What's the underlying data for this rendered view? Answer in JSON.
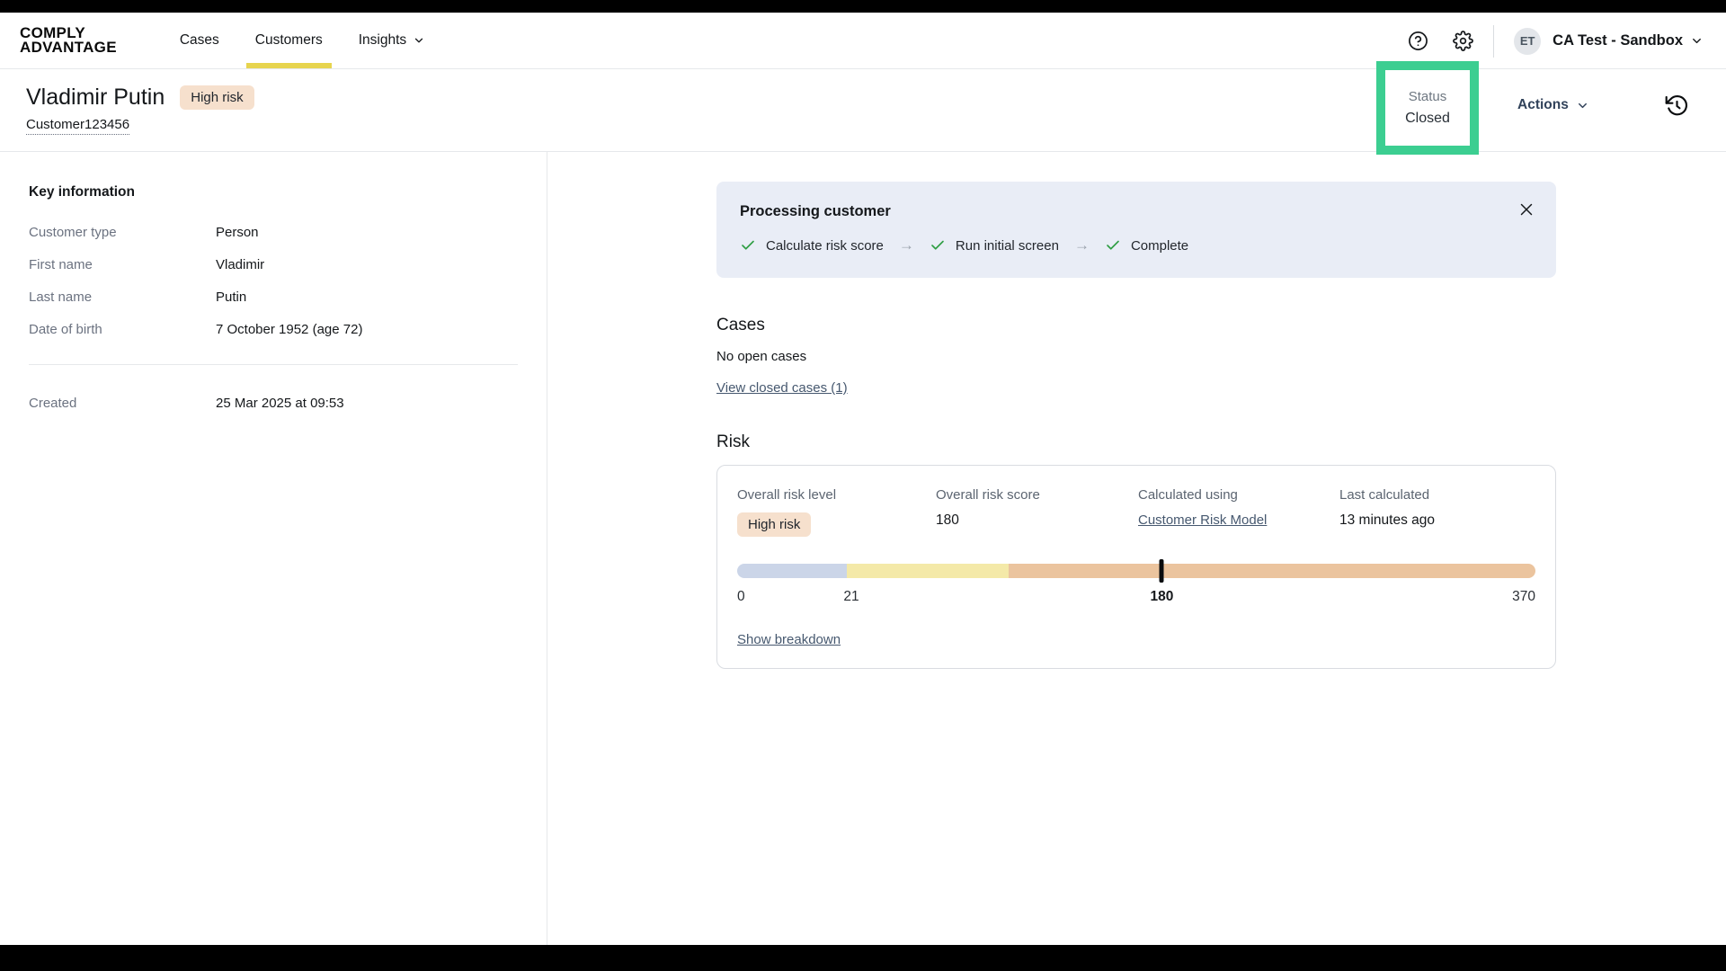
{
  "colors": {
    "annotation-green": "#3CCE91",
    "active-tab-yellow": "#E7D44E",
    "badge-peach": "#F6E0CD",
    "banner-blue": "#E9EDF6",
    "check-green": "#2F9E44",
    "link-slate": "#46586F"
  },
  "brand": {
    "line1": "COMPLY",
    "line2": "ADVANTAGE"
  },
  "nav": {
    "items": [
      {
        "label": "Cases"
      },
      {
        "label": "Customers"
      },
      {
        "label": "Insights"
      }
    ]
  },
  "topbar": {
    "avatar_initials": "ET",
    "workspace": "CA Test - Sandbox"
  },
  "header": {
    "customer_name": "Vladimir Putin",
    "risk_badge": "High risk",
    "customer_id": "Customer123456",
    "status_label": "Status",
    "status_value": "Closed",
    "actions_label": "Actions"
  },
  "key_information": {
    "title": "Key information",
    "fields": [
      {
        "label": "Customer type",
        "value": "Person"
      },
      {
        "label": "First name",
        "value": "Vladimir"
      },
      {
        "label": "Last name",
        "value": "Putin"
      },
      {
        "label": "Date of birth",
        "value": "7 October 1952 (age 72)"
      }
    ],
    "created": {
      "label": "Created",
      "value": "25 Mar 2025 at 09:53"
    }
  },
  "processing_banner": {
    "title": "Processing customer",
    "steps": [
      "Calculate risk score",
      "Run initial screen",
      "Complete"
    ]
  },
  "cases": {
    "title": "Cases",
    "empty_text": "No open cases",
    "closed_link": "View closed cases (1)"
  },
  "risk": {
    "title": "Risk",
    "stats": [
      {
        "label": "Overall risk level",
        "value": "High risk"
      },
      {
        "label": "Overall risk score",
        "value": "180"
      },
      {
        "label": "Calculated using",
        "value": "Customer Risk Model"
      },
      {
        "label": "Last calculated",
        "value": "13 minutes ago"
      }
    ],
    "bar": {
      "segments": [
        {
          "color": "#CBD5E8",
          "pct": 13.7
        },
        {
          "color": "#F4E9A8",
          "pct": 20.3
        },
        {
          "color": "#EBC49E",
          "pct": 66.0
        }
      ],
      "marker_pct": 53.2,
      "ticks": [
        {
          "label": "0",
          "pct": 0,
          "align": "left",
          "bold": false
        },
        {
          "label": "21",
          "pct": 14.3,
          "align": "center",
          "bold": false
        },
        {
          "label": "180",
          "pct": 53.2,
          "align": "center",
          "bold": true
        },
        {
          "label": "370",
          "pct": 100,
          "align": "right",
          "bold": false
        }
      ]
    },
    "breakdown_link": "Show breakdown"
  }
}
